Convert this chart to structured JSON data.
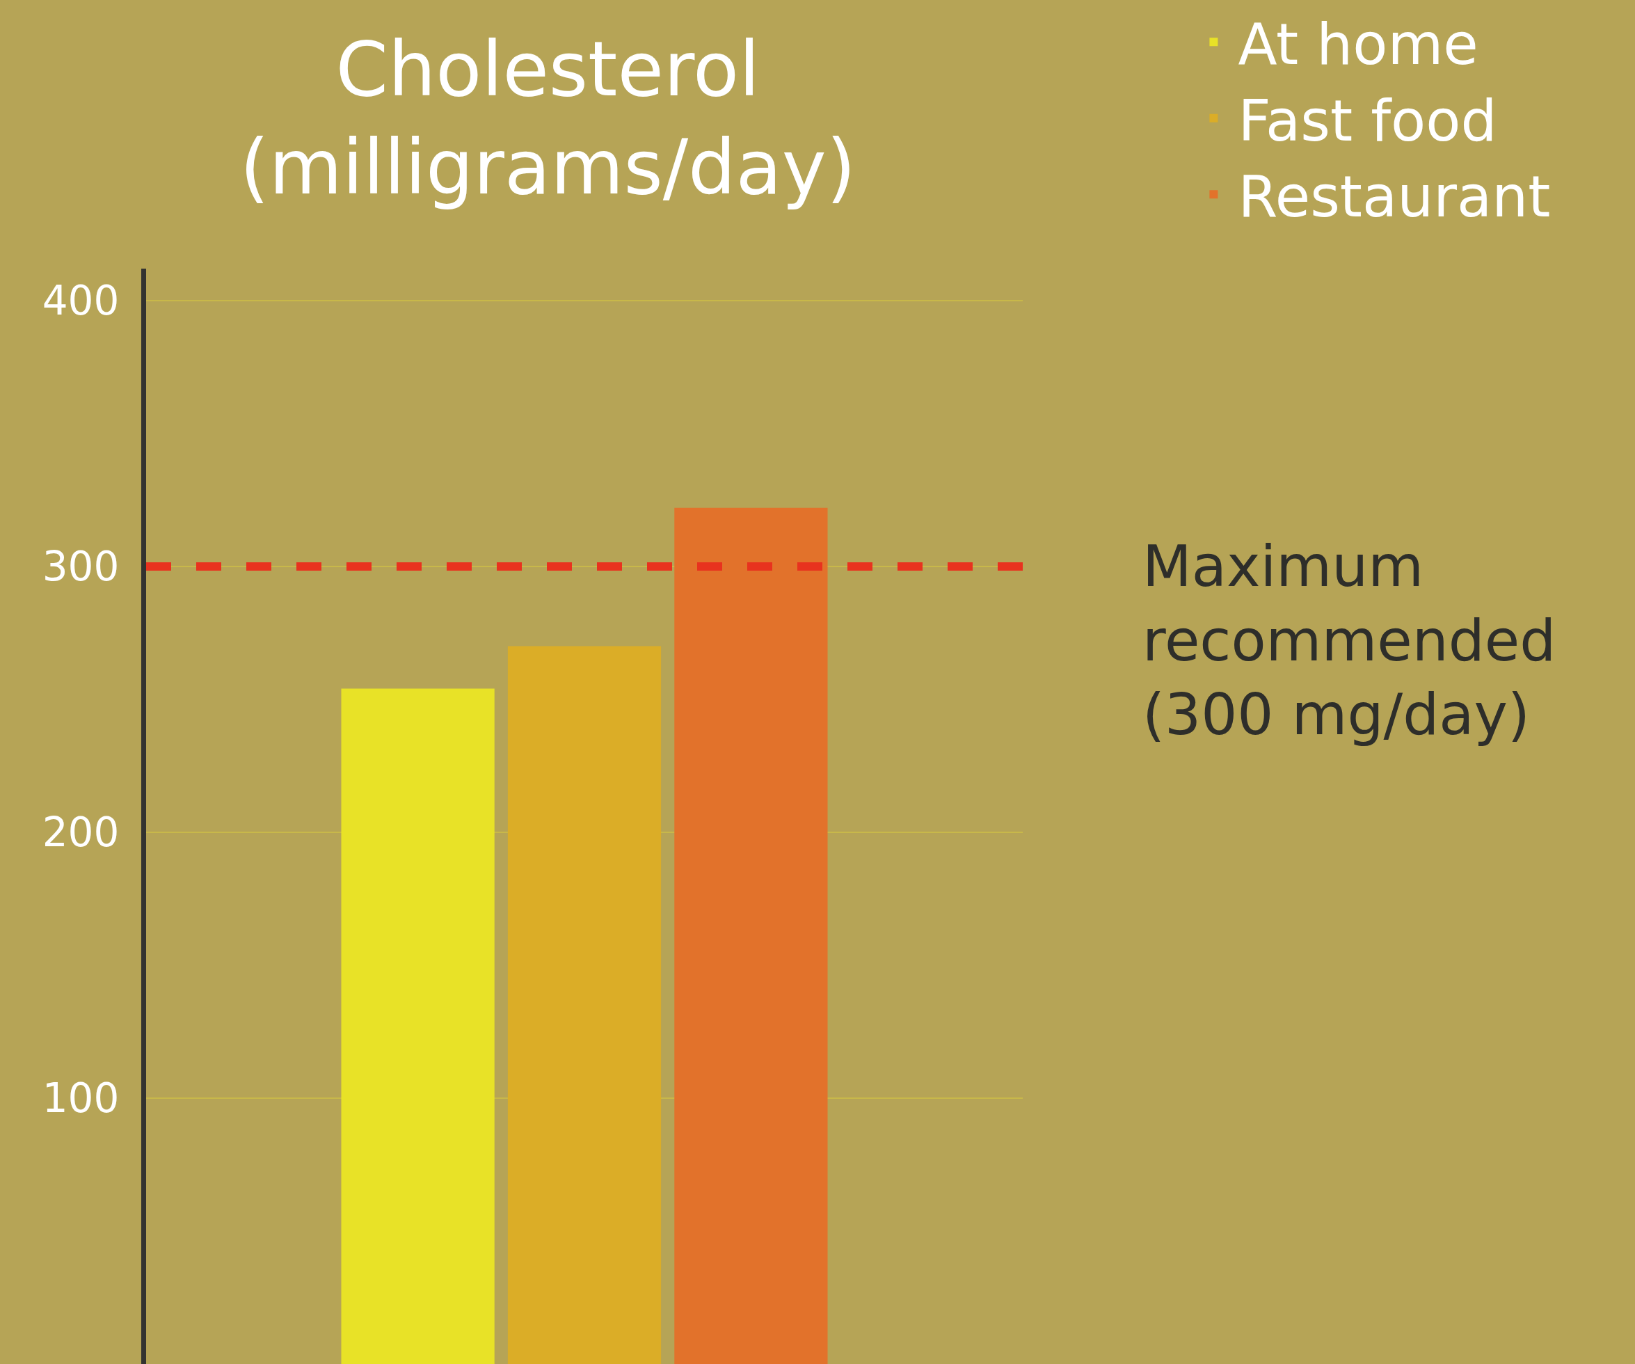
{
  "chart_data": {
    "type": "bar",
    "title": "Cholesterol\n(milligrams/day)",
    "categories": [
      null
    ],
    "series": [
      {
        "name": "At home",
        "color": "#e8e227",
        "values": [
          254
        ]
      },
      {
        "name": "Fast food",
        "color": "#dbad27",
        "values": [
          270
        ]
      },
      {
        "name": "Restaurant",
        "color": "#e2722b",
        "values": [
          322
        ]
      }
    ],
    "ylim": [
      0,
      412
    ],
    "yticks": [
      100,
      200,
      300,
      400
    ],
    "grid": "y",
    "legend": "top right",
    "ref_lines": [
      {
        "axis": "y",
        "value": 300,
        "label": "Maximum\nrecommended\n(300 mg/day)",
        "color": "#e8321e",
        "line_style": "dashed"
      }
    ]
  }
}
